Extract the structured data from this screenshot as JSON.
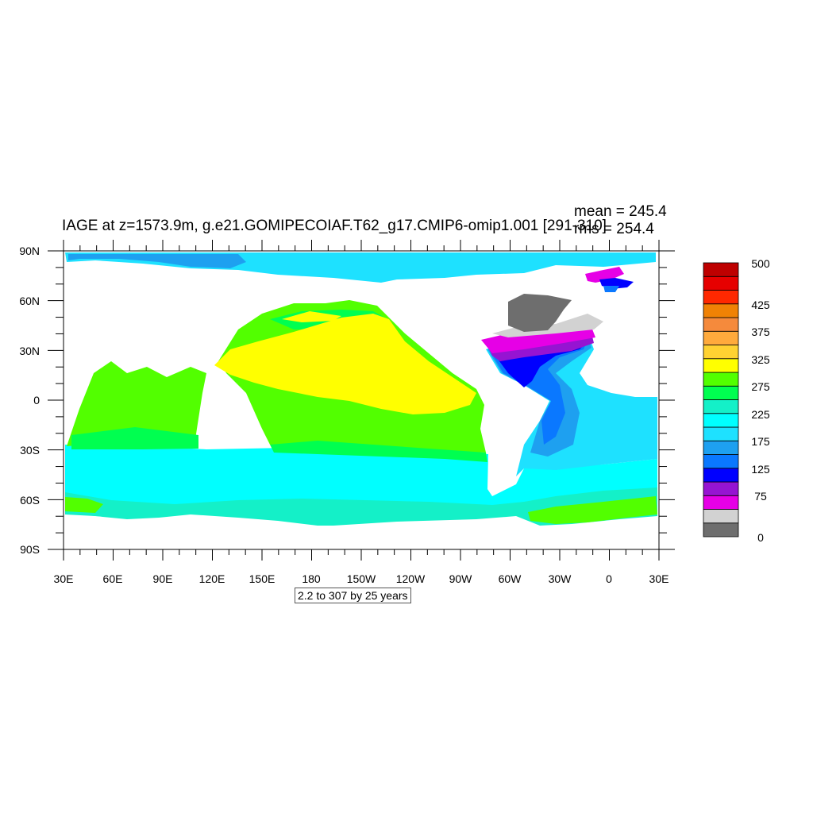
{
  "title": "IAGE at z=1573.9m, g.e21.GOMIPECOIAF.T62_g17.CMIP6-omip1.001 [291-310]",
  "stats": {
    "mean": "mean = 245.4",
    "rms": "rms = 254.4"
  },
  "info_box": "2.2 to 307 by 25 years",
  "axes": {
    "lat_labels": [
      "90N",
      "60N",
      "30N",
      "0",
      "30S",
      "60S",
      "90S"
    ],
    "lon_labels": [
      "30E",
      "60E",
      "90E",
      "120E",
      "150E",
      "180",
      "150W",
      "120W",
      "90W",
      "60W",
      "30W",
      "0",
      "30E"
    ]
  },
  "colorbar": {
    "colors": [
      "#6e6e6e",
      "#d2d2d2",
      "#e600e6",
      "#9614d2",
      "#0000ff",
      "#0a78ff",
      "#1ea0f0",
      "#1ee1ff",
      "#00ffff",
      "#14f0c8",
      "#00ff50",
      "#52ff00",
      "#ffff00",
      "#ffd232",
      "#ffaa3c",
      "#f58a3c",
      "#f08205",
      "#ff2800",
      "#e60000",
      "#be0000"
    ],
    "labels": [
      "0",
      "75",
      "125",
      "175",
      "225",
      "275",
      "325",
      "375",
      "425",
      "500"
    ]
  },
  "palette": {
    "land": "#ffffff",
    "arctic": "#1ee1ff",
    "arctic_dark": "#1ea0f0",
    "pacific_core": "#ffff00",
    "pacific_mid": "#52ff00",
    "pacific_deep": "#00ff50",
    "southern": "#00ffff",
    "southern_alt": "#14f0c8",
    "atl_1": "#1ee1ff",
    "atl_2": "#1ea0f0",
    "atl_3": "#0a78ff",
    "atl_4": "#0000ff",
    "atl_5": "#9614d2",
    "atl_6": "#e600e6",
    "gray_light": "#d2d2d2",
    "gray_dark": "#6e6e6e"
  }
}
